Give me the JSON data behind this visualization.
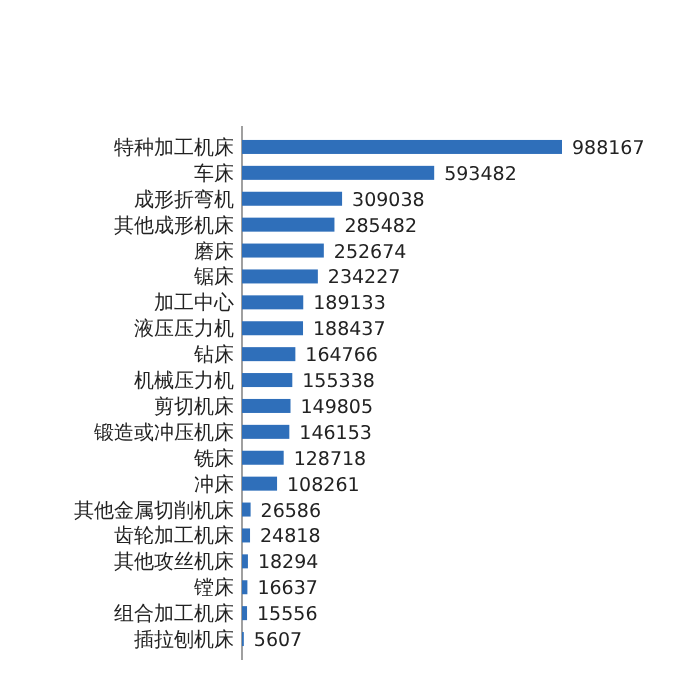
{
  "chart_data": {
    "type": "bar",
    "orientation": "horizontal",
    "data_labels": true,
    "color": "#2f6fba",
    "categories": [
      "特种加工机床",
      "车床",
      "成形折弯机",
      "其他成形机床",
      "磨床",
      "锯床",
      "加工中心",
      "液压压力机",
      "钻床",
      "机械压力机",
      "剪切机床",
      "锻造或冲压机床",
      "铣床",
      "冲床",
      "其他金属切削机床",
      "齿轮加工机床",
      "其他攻丝机床",
      "镗床",
      "组合加工机床",
      "插拉刨机床"
    ],
    "values": [
      988167,
      593482,
      309038,
      285482,
      252674,
      234227,
      189133,
      188437,
      164766,
      155338,
      149805,
      146153,
      128718,
      108261,
      26586,
      24818,
      18294,
      16637,
      15556,
      5607
    ]
  }
}
